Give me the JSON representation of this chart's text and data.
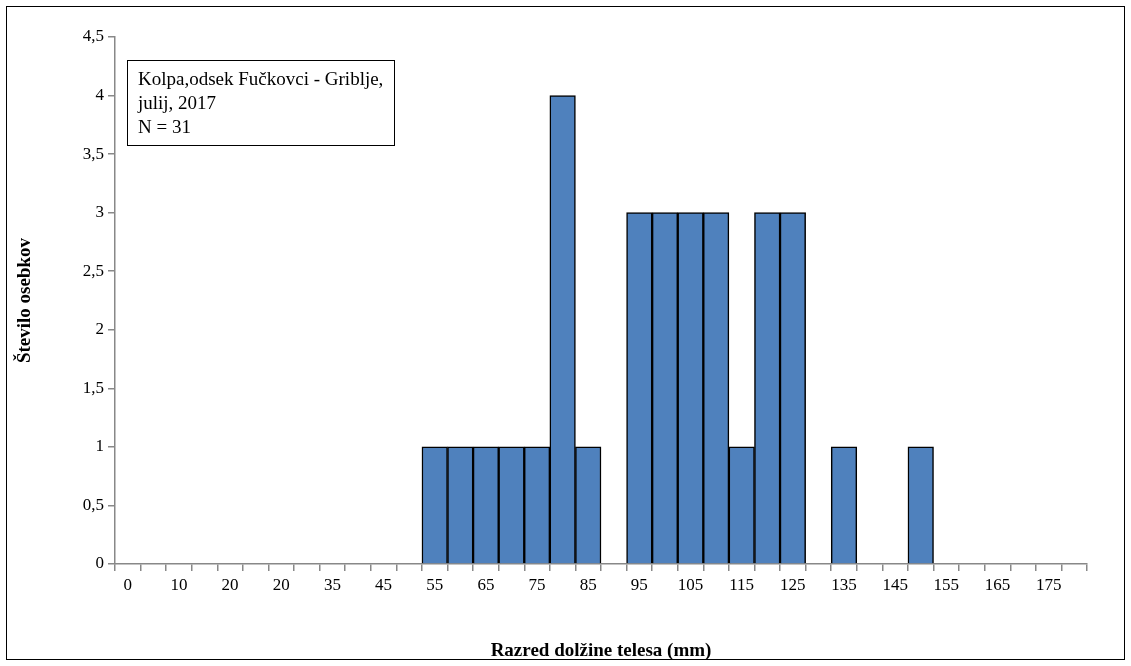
{
  "chart_data": {
    "type": "bar",
    "xlabel": "Razred dolžine telesa (mm)",
    "ylabel": "Število osebkov",
    "annotations": [
      "Kolpa,odsek Fučkovci - Griblje,\njulij, 2017\nN = 31"
    ],
    "categories": [
      "0",
      null,
      "10",
      null,
      "20",
      null,
      "20",
      null,
      "35",
      null,
      "45",
      null,
      "55",
      null,
      "65",
      null,
      "75",
      null,
      "85",
      null,
      "95",
      null,
      "105",
      null,
      "115",
      null,
      "125",
      null,
      "135",
      null,
      "145",
      null,
      "155",
      null,
      "165",
      null,
      "175",
      null
    ],
    "values": [
      0,
      0,
      0,
      0,
      0,
      0,
      0,
      0,
      0,
      0,
      0,
      0,
      1,
      1,
      1,
      1,
      1,
      4,
      1,
      0,
      3,
      3,
      3,
      3,
      1,
      3,
      3,
      0,
      1,
      0,
      0,
      1,
      0,
      0,
      0,
      0,
      0,
      0
    ],
    "color": "#4f81bd",
    "ylim": [
      0,
      4.5
    ],
    "yticks": [
      0,
      {
        "value": 0.5,
        "label": "0,5"
      },
      1,
      {
        "value": 1.5,
        "label": "1,5"
      },
      2,
      {
        "value": 2.5,
        "label": "2,5"
      },
      3,
      {
        "value": 3.5,
        "label": "3,5"
      },
      4,
      {
        "value": 4.5,
        "label": "4,5"
      }
    ],
    "grid": false,
    "legend": false
  }
}
